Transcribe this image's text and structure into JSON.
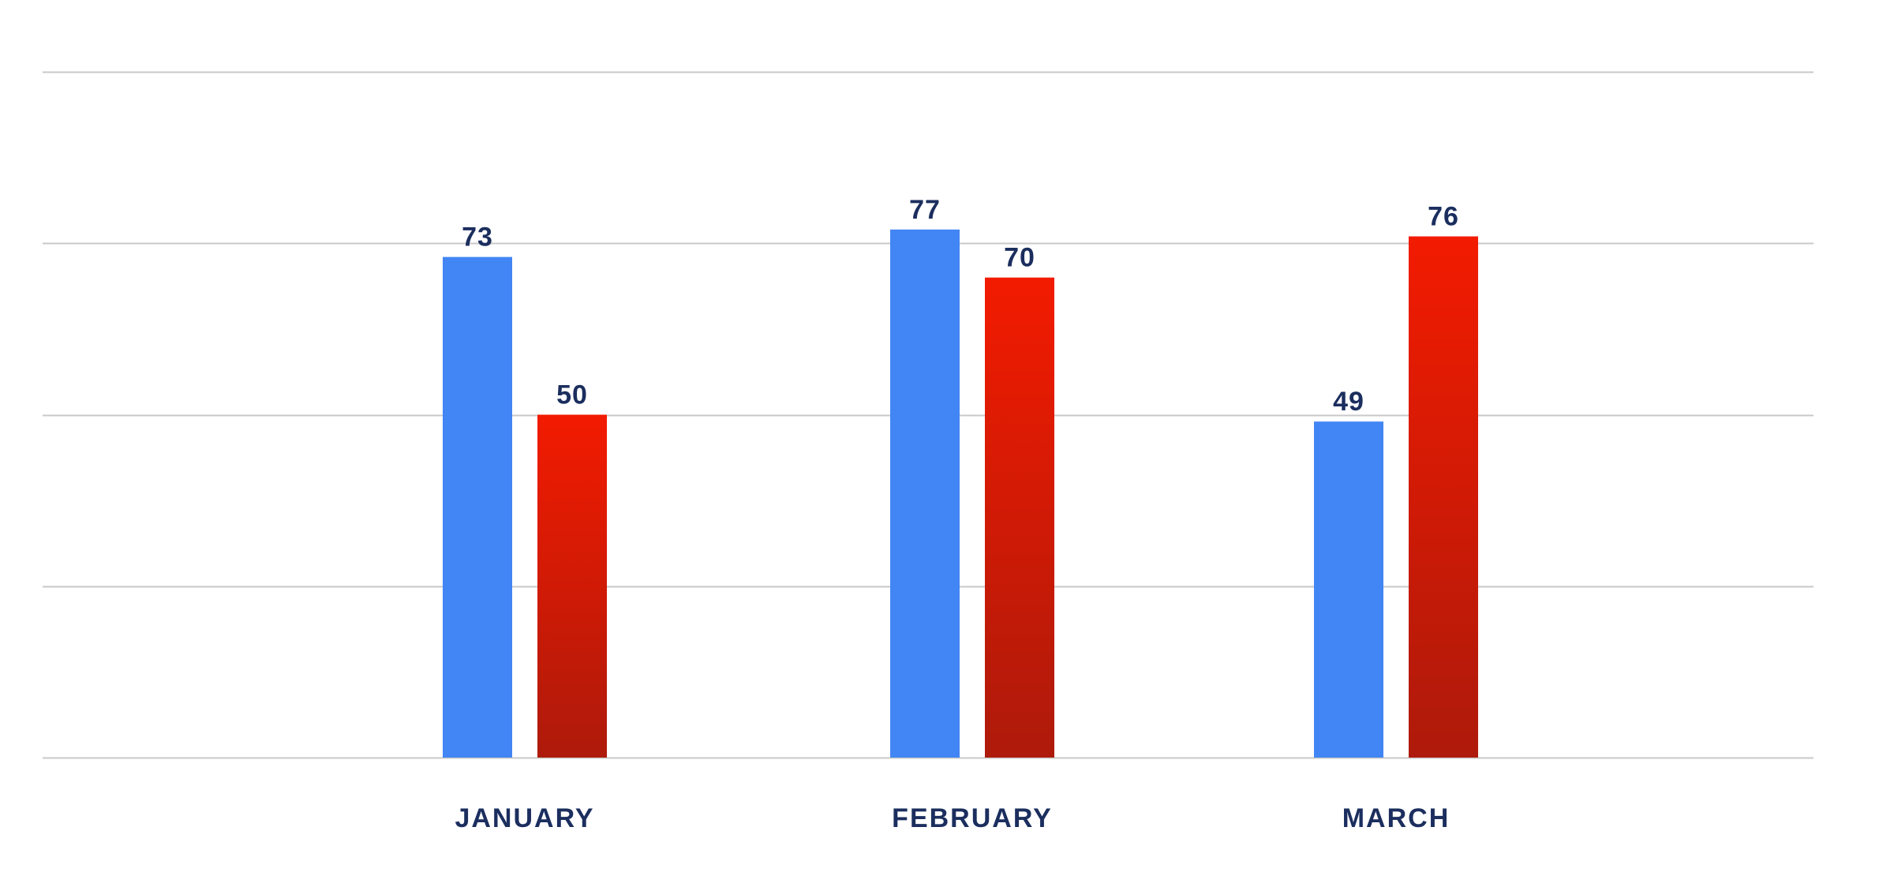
{
  "chart_data": {
    "type": "bar",
    "categories": [
      "JANUARY",
      "FEBRUARY",
      "MARCH"
    ],
    "series": [
      {
        "values": [
          73,
          77,
          49
        ],
        "color": "#4285F4"
      },
      {
        "values": [
          50,
          70,
          76
        ],
        "color_top": "#F21B00",
        "color_bottom": "#AE1A0B"
      }
    ],
    "ylim": [
      0,
      100
    ],
    "gridlines": [
      0,
      25,
      50,
      75,
      100
    ],
    "grid": true,
    "legend": "none",
    "label_color": "#1B2E5E",
    "grid_color": "#C8C8C8"
  }
}
